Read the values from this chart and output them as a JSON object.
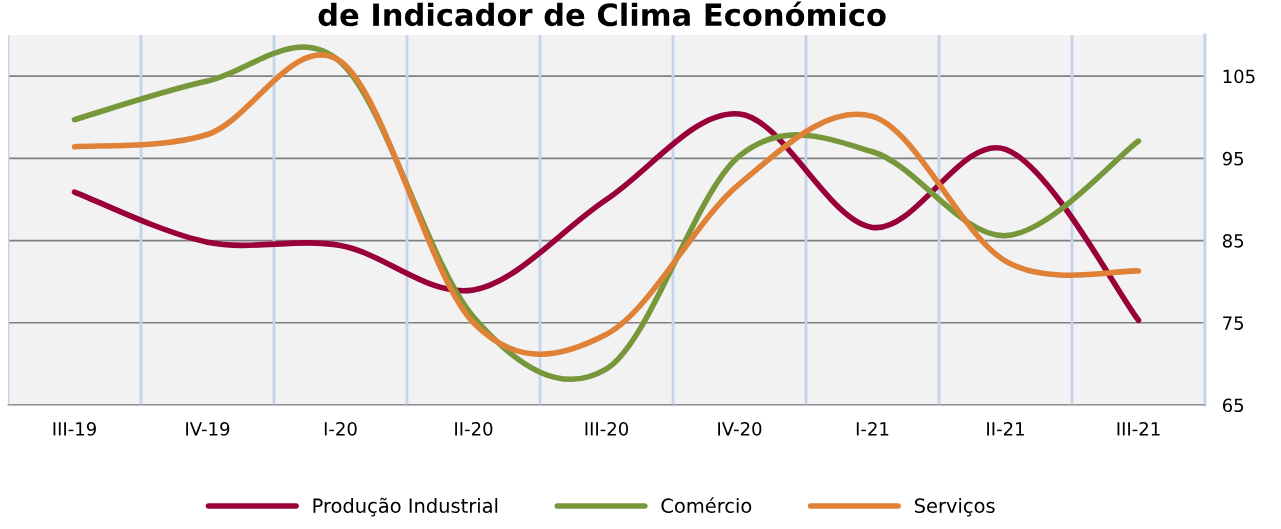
{
  "chart_data": {
    "type": "line",
    "title": "de Indicador de Clima Económico",
    "categories": [
      "III-19",
      "IV-19",
      "I-20",
      "II-20",
      "III-20",
      "IV-20",
      "I-21",
      "II-21",
      "III-21"
    ],
    "series": [
      {
        "name": "Produção Industrial",
        "color": "#99003a",
        "values": [
          90.9,
          84.8,
          84.4,
          79.0,
          90.0,
          100.4,
          86.6,
          96.1,
          75.3
        ]
      },
      {
        "name": "Comércio",
        "color": "#77973b",
        "values": [
          99.7,
          104.4,
          106.7,
          75.7,
          69.4,
          95.3,
          95.8,
          85.6,
          97.1
        ]
      },
      {
        "name": "Serviços",
        "color": "#df8237",
        "values": [
          96.4,
          97.9,
          106.8,
          75.0,
          73.6,
          91.9,
          100.1,
          82.5,
          81.3
        ]
      }
    ],
    "ylim": [
      65,
      110
    ],
    "yticks": [
      65,
      75,
      85,
      95,
      105
    ],
    "grid": true,
    "legend": "bottom",
    "marker": "none",
    "line_style": "solid"
  }
}
